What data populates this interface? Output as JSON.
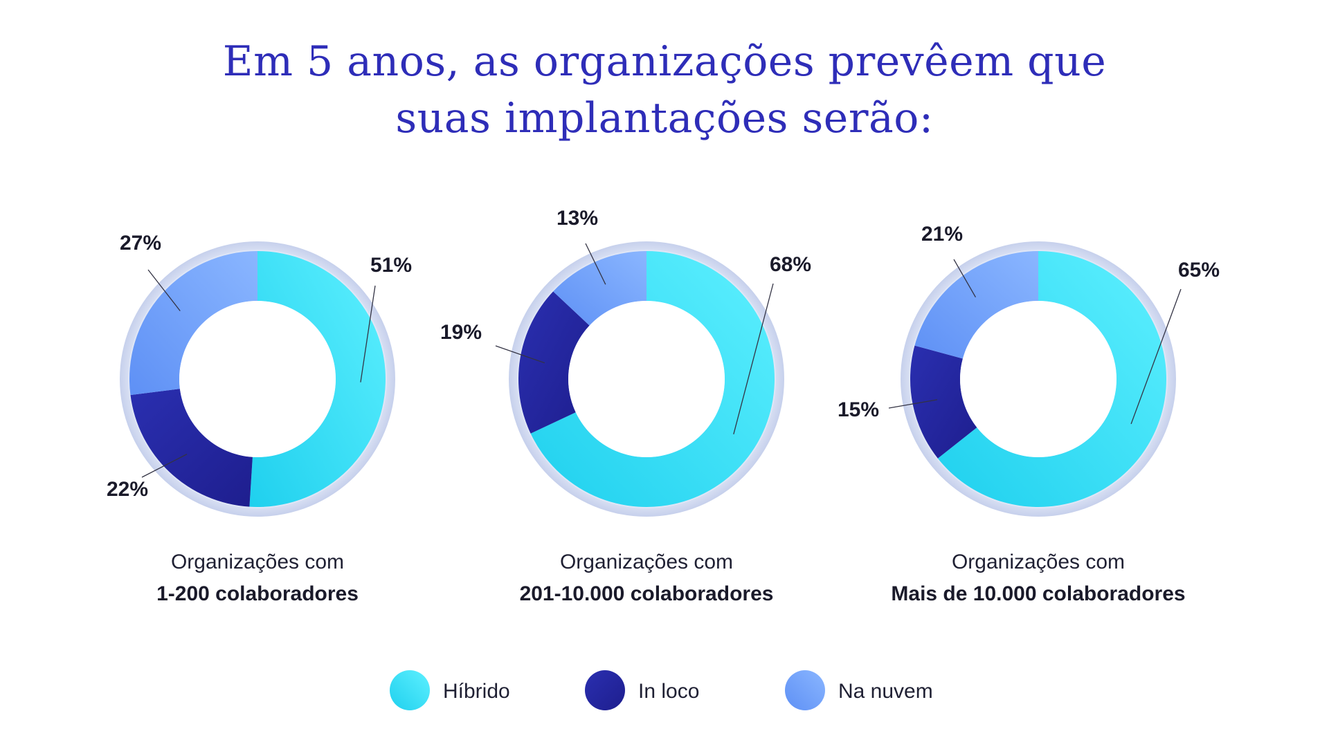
{
  "title": {
    "line1": "Em 5 anos, as organizações prevêem que",
    "line2": "suas implantações serão:"
  },
  "colors": {
    "title": "#2e2db8",
    "hibrido_start": "#5ef0ff",
    "hibrido_end": "#1fd0ee",
    "in_loco_start": "#2a2fb0",
    "in_loco_end": "#1e1e8e",
    "na_nuvem_start": "#8ab6ff",
    "na_nuvem_end": "#5e90f5",
    "halo": "#c9d4f0"
  },
  "chart_data": [
    {
      "type": "pie",
      "categories": [
        "Híbrido",
        "In loco",
        "Na nuvem"
      ],
      "values": [
        51,
        22,
        27
      ],
      "labels": [
        "51%",
        "22%",
        "27%"
      ],
      "caption_line1": "Organizações com",
      "caption_line2": "1-200 colaboradores"
    },
    {
      "type": "pie",
      "categories": [
        "Híbrido",
        "In loco",
        "Na nuvem"
      ],
      "values": [
        68,
        19,
        13
      ],
      "labels": [
        "68%",
        "19%",
        "13%"
      ],
      "caption_line1": "Organizações com",
      "caption_line2": "201-10.000 colaboradores"
    },
    {
      "type": "pie",
      "categories": [
        "Híbrido",
        "In loco",
        "Na nuvem"
      ],
      "values": [
        65,
        15,
        21
      ],
      "labels": [
        "65%",
        "15%",
        "21%"
      ],
      "caption_line1": "Organizações com",
      "caption_line2": "Mais de 10.000 colaboradores"
    }
  ],
  "legend": [
    {
      "label": "Híbrido"
    },
    {
      "label": "In loco"
    },
    {
      "label": "Na nuvem"
    }
  ]
}
